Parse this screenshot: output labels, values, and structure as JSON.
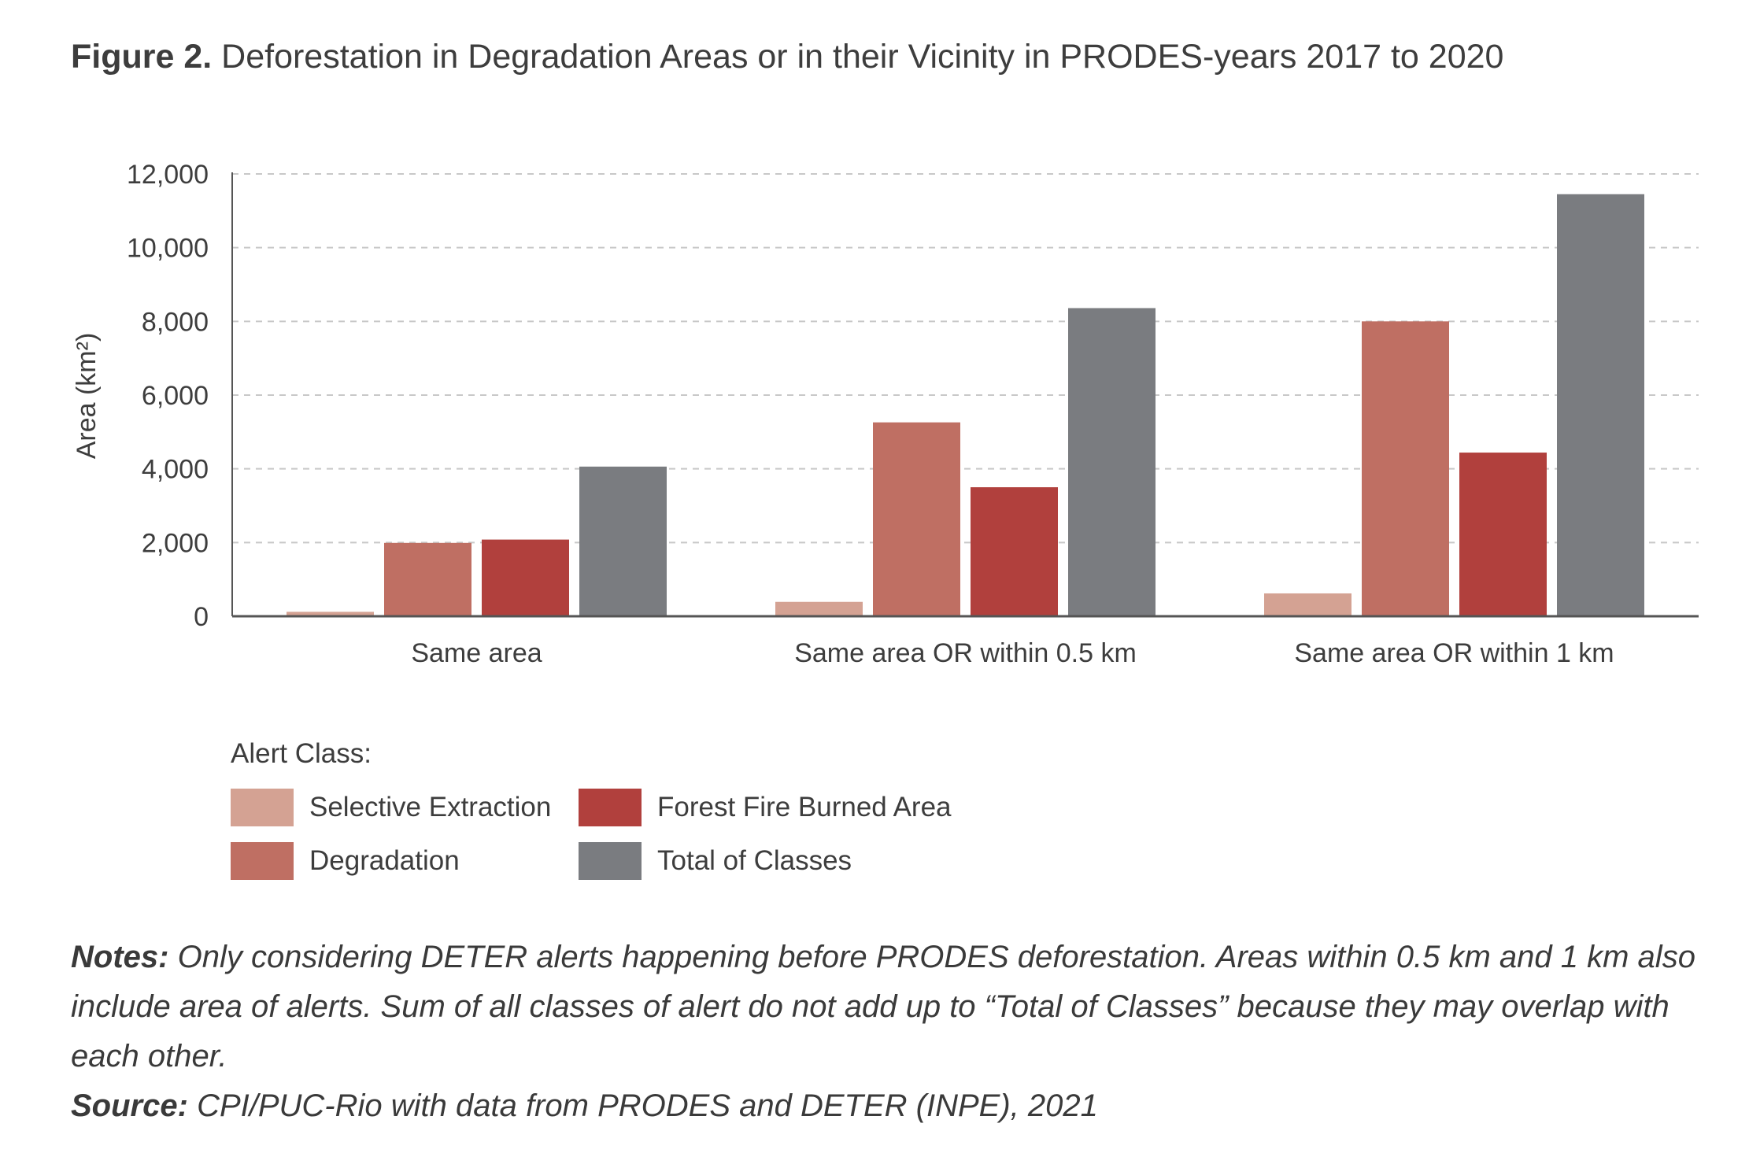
{
  "figure": {
    "label": "Figure 2.",
    "title": "Deforestation in Degradation Areas or in their Vicinity in PRODES-years 2017 to 2020"
  },
  "chart_data": {
    "type": "bar",
    "ylabel": "Area (km²)",
    "xlabel": "",
    "ylim": [
      0,
      12000
    ],
    "yticks": [
      0,
      2000,
      4000,
      6000,
      8000,
      10000,
      12000
    ],
    "ytick_labels": [
      "0",
      "2,000",
      "4,000",
      "6,000",
      "8,000",
      "10,000",
      "12,000"
    ],
    "grid": "horizontal dashed",
    "categories": [
      "Same area",
      "Same area OR within 0.5 km",
      "Same area OR within 1 km"
    ],
    "series": [
      {
        "name": "Selective Extraction",
        "color": "#d4a293",
        "values": [
          120,
          390,
          620
        ]
      },
      {
        "name": "Degradation",
        "color": "#bf6f63",
        "values": [
          1990,
          5260,
          8000
        ]
      },
      {
        "name": "Forest Fire Burned Area",
        "color": "#b1403d",
        "values": [
          2080,
          3500,
          4440
        ]
      },
      {
        "name": "Total of Classes",
        "color": "#7a7c80",
        "values": [
          4060,
          8360,
          11450
        ]
      }
    ],
    "legend": {
      "title": "Alert Class:",
      "placement": "bottom-left"
    }
  },
  "notes": {
    "notes_label": "Notes:",
    "notes_text": "Only considering DETER alerts happening before PRODES deforestation. Areas within 0.5 km and 1 km also include area of alerts. Sum of all classes of alert do not add up to “Total of Classes” because they may overlap with each other.",
    "source_label": "Source:",
    "source_text": "CPI/PUC-Rio with data from PRODES and DETER (INPE), 2021"
  }
}
